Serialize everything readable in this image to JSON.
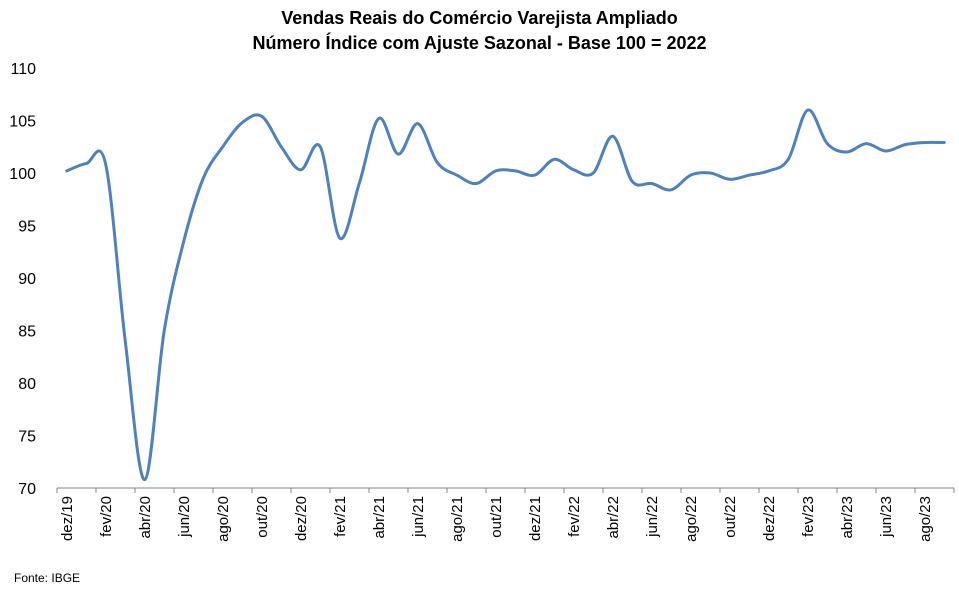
{
  "chart_data": {
    "type": "line",
    "title": "Vendas Reais do Comércio Varejista Ampliado",
    "subtitle": "Número Índice com Ajuste Sazonal - Base 100 = 2022",
    "xlabel": "",
    "ylabel": "",
    "ylim": [
      70,
      110
    ],
    "yticks": [
      70,
      75,
      80,
      85,
      90,
      95,
      100,
      105,
      110
    ],
    "grid": false,
    "legend": "none",
    "line_color": "#4f81bd",
    "x": [
      "dez/19",
      "jan/20",
      "fev/20",
      "mar/20",
      "abr/20",
      "mai/20",
      "jun/20",
      "jul/20",
      "ago/20",
      "set/20",
      "out/20",
      "nov/20",
      "dez/20",
      "jan/21",
      "fev/21",
      "mar/21",
      "abr/21",
      "mai/21",
      "jun/21",
      "jul/21",
      "ago/21",
      "set/21",
      "out/21",
      "nov/21",
      "dez/21",
      "jan/22",
      "fev/22",
      "mar/22",
      "abr/22",
      "mai/22",
      "jun/22",
      "jul/22",
      "ago/22",
      "set/22",
      "out/22",
      "nov/22",
      "dez/22",
      "jan/23",
      "fev/23",
      "mar/23",
      "abr/23",
      "mai/23",
      "jun/23",
      "jul/23",
      "ago/23",
      "set/23"
    ],
    "xticks": [
      "dez/19",
      "fev/20",
      "abr/20",
      "jun/20",
      "ago/20",
      "out/20",
      "dez/20",
      "fev/21",
      "abr/21",
      "jun/21",
      "ago/21",
      "out/21",
      "dez/21",
      "fev/22",
      "abr/22",
      "jun/22",
      "ago/22",
      "out/22",
      "dez/22",
      "fev/23",
      "abr/23",
      "jun/23",
      "ago/23"
    ],
    "series": [
      {
        "values": [
          100.2,
          100.9,
          100.8,
          84.0,
          70.8,
          85.0,
          93.5,
          99.5,
          102.5,
          104.8,
          105.4,
          102.5,
          100.3,
          102.5,
          93.8,
          99.0,
          105.2,
          101.8,
          104.7,
          101.0,
          99.8,
          99.0,
          100.2,
          100.2,
          99.8,
          101.3,
          100.3,
          100.0,
          103.5,
          99.2,
          99.0,
          98.4,
          99.8,
          100.0,
          99.4,
          99.8,
          100.2,
          101.3,
          106.0,
          102.8,
          102.0,
          102.8,
          102.1,
          102.7,
          102.9,
          102.9
        ]
      }
    ]
  },
  "source": "Fonte: IBGE"
}
